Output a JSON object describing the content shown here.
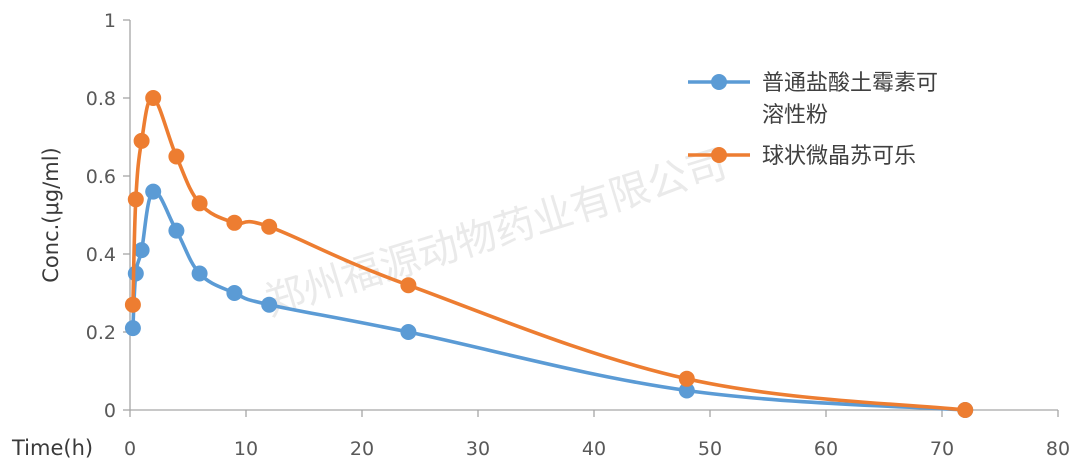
{
  "chart_data": {
    "type": "line",
    "xlabel": "Time(h)",
    "ylabel": "Conc.(μg/ml)",
    "xlim": [
      0,
      80
    ],
    "ylim": [
      0,
      1
    ],
    "xticks": [
      0,
      10,
      20,
      30,
      40,
      50,
      60,
      70,
      80
    ],
    "yticks": [
      0,
      0.2,
      0.4,
      0.6,
      0.8,
      1
    ],
    "ytick_labels": [
      "0",
      "0.2",
      "0.4",
      "0.6",
      "0.8",
      "1"
    ],
    "grid": false,
    "legend_position": "top-right",
    "smooth": true,
    "watermark": "郑州福源动物药业有限公司",
    "series": [
      {
        "name": "普通盐酸土霉素可溶性粉",
        "name_lines": [
          "普通盐酸土霉素可",
          "溶性粉"
        ],
        "color": "#5b9bd5",
        "x": [
          0.25,
          0.5,
          1,
          2,
          4,
          6,
          9,
          12,
          24,
          48,
          72
        ],
        "y": [
          0.21,
          0.35,
          0.41,
          0.56,
          0.46,
          0.35,
          0.3,
          0.27,
          0.2,
          0.05,
          0.0
        ]
      },
      {
        "name": "球状微晶苏可乐",
        "name_lines": [
          "球状微晶苏可乐"
        ],
        "color": "#ed7d31",
        "x": [
          0.25,
          0.5,
          1,
          2,
          4,
          6,
          9,
          12,
          24,
          48,
          72
        ],
        "y": [
          0.27,
          0.54,
          0.69,
          0.8,
          0.65,
          0.53,
          0.48,
          0.47,
          0.32,
          0.08,
          0.0
        ]
      }
    ]
  }
}
